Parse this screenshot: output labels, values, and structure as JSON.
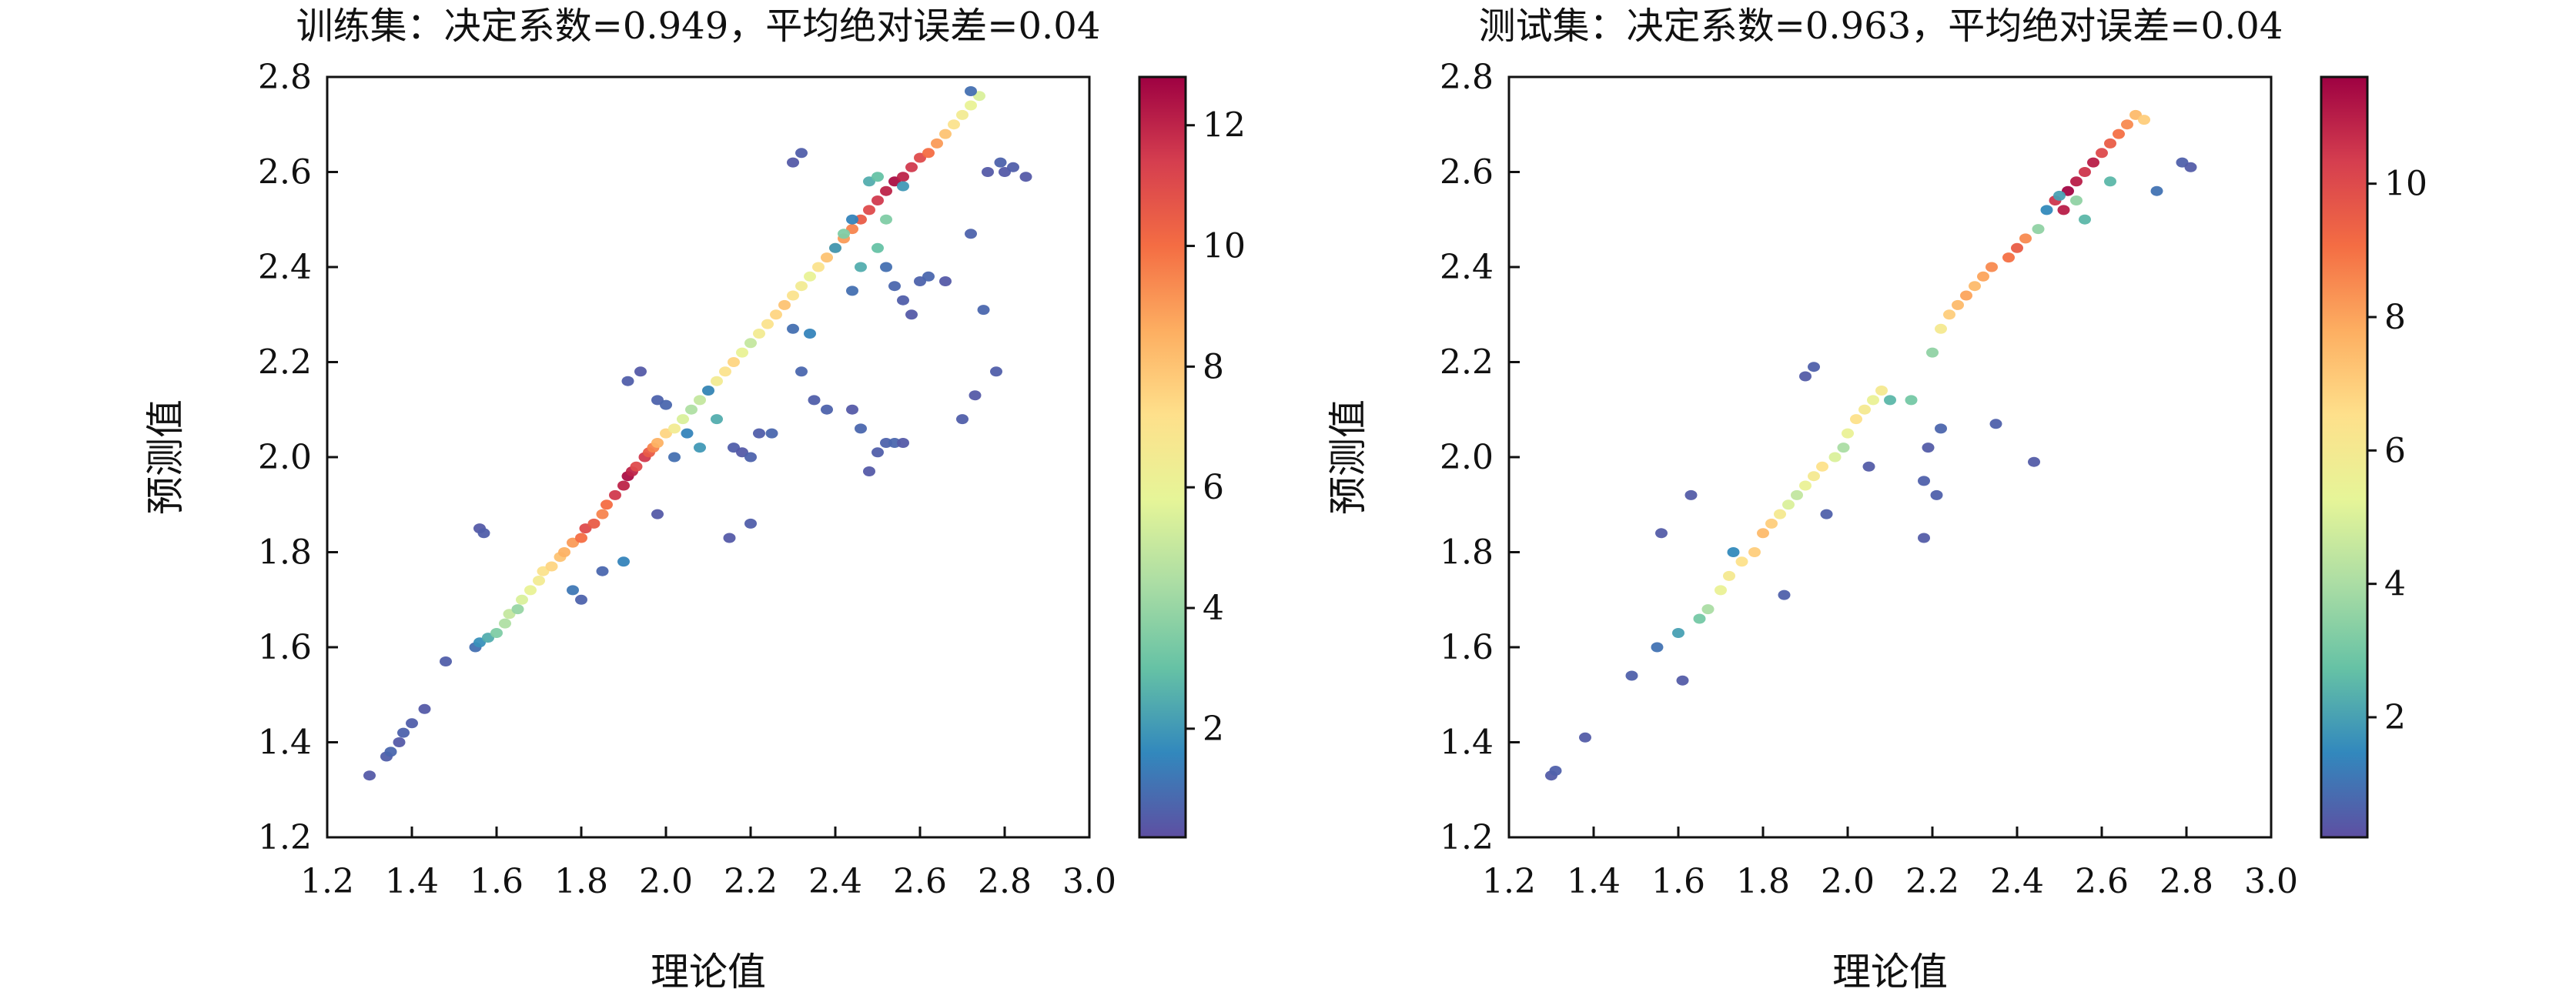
{
  "colormap": {
    "name": "Spectral_r",
    "stops": [
      "#5e4fa2",
      "#3288bd",
      "#66c2a5",
      "#abdda4",
      "#e6f598",
      "#fee08b",
      "#fdae61",
      "#f46d43",
      "#d53e4f",
      "#9e0142"
    ]
  },
  "chart_data": [
    {
      "type": "scatter",
      "title": "训练集：决定系数=0.949，平均绝对误差=0.04",
      "xlabel": "理论值",
      "ylabel": "预测值",
      "xlim": [
        1.2,
        3.0
      ],
      "ylim": [
        1.2,
        2.8
      ],
      "xticks": [
        "1.2",
        "1.4",
        "1.6",
        "1.8",
        "2.0",
        "2.2",
        "2.4",
        "2.6",
        "2.8",
        "3.0"
      ],
      "yticks": [
        "1.2",
        "1.4",
        "1.6",
        "1.8",
        "2.0",
        "2.2",
        "2.4",
        "2.6",
        "2.8"
      ],
      "colorbar": {
        "range": [
          0.2,
          12.8
        ],
        "ticks": [
          "2",
          "4",
          "6",
          "8",
          "10",
          "12"
        ]
      },
      "points": [
        [
          1.3,
          1.33,
          0.5
        ],
        [
          1.34,
          1.37,
          0.6
        ],
        [
          1.35,
          1.38,
          0.8
        ],
        [
          1.37,
          1.4,
          0.5
        ],
        [
          1.38,
          1.42,
          0.7
        ],
        [
          1.4,
          1.44,
          0.6
        ],
        [
          1.43,
          1.47,
          0.5
        ],
        [
          1.48,
          1.57,
          0.6
        ],
        [
          1.55,
          1.6,
          1.0
        ],
        [
          1.56,
          1.61,
          1.8
        ],
        [
          1.58,
          1.62,
          2.5
        ],
        [
          1.6,
          1.63,
          3.5
        ],
        [
          1.62,
          1.65,
          4.5
        ],
        [
          1.63,
          1.67,
          5.0
        ],
        [
          1.65,
          1.68,
          4.0
        ],
        [
          1.66,
          1.7,
          5.5
        ],
        [
          1.68,
          1.72,
          6.0
        ],
        [
          1.7,
          1.74,
          6.5
        ],
        [
          1.71,
          1.76,
          7.0
        ],
        [
          1.73,
          1.77,
          7.5
        ],
        [
          1.75,
          1.79,
          8.0
        ],
        [
          1.76,
          1.8,
          8.5
        ],
        [
          1.78,
          1.82,
          9.0
        ],
        [
          1.8,
          1.83,
          10.0
        ],
        [
          1.81,
          1.85,
          11.0
        ],
        [
          1.83,
          1.86,
          10.5
        ],
        [
          1.85,
          1.88,
          9.5
        ],
        [
          1.86,
          1.9,
          10.0
        ],
        [
          1.88,
          1.92,
          11.5
        ],
        [
          1.9,
          1.94,
          12.0
        ],
        [
          1.91,
          1.96,
          12.5
        ],
        [
          1.92,
          1.97,
          12.0
        ],
        [
          1.93,
          1.98,
          11.0
        ],
        [
          1.95,
          2.0,
          11.5
        ],
        [
          1.96,
          2.01,
          10.5
        ],
        [
          1.97,
          2.02,
          9.5
        ],
        [
          1.98,
          2.03,
          8.5
        ],
        [
          2.0,
          2.05,
          7.5
        ],
        [
          2.02,
          2.06,
          6.5
        ],
        [
          2.04,
          2.08,
          5.5
        ],
        [
          2.06,
          2.1,
          4.5
        ],
        [
          2.08,
          2.12,
          5.0
        ],
        [
          2.1,
          2.14,
          6.0
        ],
        [
          2.12,
          2.16,
          6.5
        ],
        [
          2.14,
          2.18,
          7.0
        ],
        [
          2.16,
          2.2,
          7.5
        ],
        [
          2.18,
          2.22,
          6.0
        ],
        [
          2.2,
          2.24,
          5.0
        ],
        [
          2.22,
          2.26,
          6.5
        ],
        [
          2.24,
          2.28,
          7.0
        ],
        [
          2.26,
          2.3,
          7.5
        ],
        [
          2.28,
          2.32,
          8.0
        ],
        [
          2.3,
          2.34,
          7.0
        ],
        [
          2.32,
          2.36,
          6.5
        ],
        [
          2.34,
          2.38,
          6.0
        ],
        [
          2.36,
          2.4,
          7.0
        ],
        [
          2.38,
          2.42,
          8.0
        ],
        [
          2.4,
          2.44,
          8.5
        ],
        [
          2.42,
          2.46,
          9.0
        ],
        [
          2.44,
          2.48,
          9.5
        ],
        [
          2.46,
          2.5,
          10.5
        ],
        [
          2.48,
          2.52,
          11.0
        ],
        [
          2.5,
          2.54,
          11.5
        ],
        [
          2.52,
          2.56,
          12.0
        ],
        [
          2.54,
          2.58,
          12.5
        ],
        [
          2.56,
          2.59,
          12.0
        ],
        [
          2.58,
          2.61,
          11.5
        ],
        [
          2.6,
          2.63,
          11.0
        ],
        [
          2.62,
          2.64,
          10.0
        ],
        [
          2.64,
          2.66,
          9.0
        ],
        [
          2.66,
          2.68,
          8.0
        ],
        [
          2.68,
          2.7,
          7.0
        ],
        [
          2.7,
          2.72,
          6.5
        ],
        [
          2.72,
          2.74,
          6.0
        ],
        [
          2.74,
          2.76,
          5.5
        ],
        [
          2.72,
          2.77,
          1.0
        ],
        [
          1.56,
          1.85,
          0.5
        ],
        [
          1.57,
          1.84,
          0.6
        ],
        [
          1.8,
          1.7,
          0.7
        ],
        [
          1.78,
          1.72,
          1.2
        ],
        [
          1.85,
          1.76,
          0.8
        ],
        [
          1.9,
          1.78,
          1.5
        ],
        [
          1.94,
          2.18,
          0.5
        ],
        [
          1.91,
          2.16,
          0.6
        ],
        [
          1.98,
          2.12,
          0.7
        ],
        [
          2.0,
          2.11,
          0.8
        ],
        [
          1.98,
          1.88,
          0.5
        ],
        [
          2.02,
          2.0,
          1.0
        ],
        [
          2.05,
          2.05,
          1.5
        ],
        [
          2.08,
          2.02,
          2.0
        ],
        [
          2.1,
          2.14,
          1.5
        ],
        [
          2.12,
          2.08,
          2.5
        ],
        [
          2.16,
          2.02,
          0.6
        ],
        [
          2.18,
          2.01,
          0.5
        ],
        [
          2.2,
          2.0,
          0.7
        ],
        [
          2.22,
          2.05,
          0.6
        ],
        [
          2.25,
          2.05,
          0.8
        ],
        [
          2.15,
          1.83,
          0.5
        ],
        [
          2.2,
          1.86,
          0.6
        ],
        [
          2.3,
          2.27,
          1.0
        ],
        [
          2.32,
          2.18,
          0.8
        ],
        [
          2.34,
          2.26,
          1.5
        ],
        [
          2.35,
          2.12,
          0.6
        ],
        [
          2.3,
          2.62,
          0.5
        ],
        [
          2.32,
          2.64,
          0.6
        ],
        [
          2.38,
          2.1,
          0.7
        ],
        [
          2.44,
          2.1,
          0.5
        ],
        [
          2.46,
          2.06,
          0.8
        ],
        [
          2.48,
          1.97,
          0.5
        ],
        [
          2.5,
          2.01,
          0.6
        ],
        [
          2.52,
          2.03,
          0.7
        ],
        [
          2.54,
          2.03,
          0.8
        ],
        [
          2.56,
          2.03,
          0.5
        ],
        [
          2.44,
          2.35,
          1.0
        ],
        [
          2.46,
          2.4,
          2.5
        ],
        [
          2.5,
          2.44,
          3.0
        ],
        [
          2.52,
          2.4,
          1.0
        ],
        [
          2.54,
          2.36,
          0.8
        ],
        [
          2.56,
          2.33,
          0.6
        ],
        [
          2.58,
          2.3,
          0.5
        ],
        [
          2.6,
          2.37,
          0.7
        ],
        [
          2.62,
          2.38,
          0.8
        ],
        [
          2.66,
          2.37,
          0.5
        ],
        [
          2.7,
          2.08,
          0.6
        ],
        [
          2.73,
          2.13,
          0.5
        ],
        [
          2.75,
          2.31,
          0.8
        ],
        [
          2.76,
          2.6,
          0.5
        ],
        [
          2.78,
          2.18,
          0.6
        ],
        [
          2.79,
          2.62,
          0.7
        ],
        [
          2.8,
          2.6,
          0.5
        ],
        [
          2.82,
          2.61,
          0.6
        ],
        [
          2.85,
          2.59,
          0.5
        ],
        [
          2.72,
          2.47,
          0.7
        ],
        [
          2.48,
          2.58,
          2.5
        ],
        [
          2.5,
          2.59,
          3.0
        ],
        [
          2.52,
          2.5,
          3.5
        ],
        [
          2.44,
          2.5,
          1.5
        ],
        [
          2.4,
          2.44,
          2.0
        ],
        [
          2.42,
          2.47,
          3.5
        ],
        [
          2.56,
          2.57,
          2.0
        ]
      ]
    },
    {
      "type": "scatter",
      "title": "测试集：决定系数=0.963，平均绝对误差=0.04",
      "xlabel": "理论值",
      "ylabel": "预测值",
      "xlim": [
        1.2,
        3.0
      ],
      "ylim": [
        1.2,
        2.8
      ],
      "xticks": [
        "1.2",
        "1.4",
        "1.6",
        "1.8",
        "2.0",
        "2.2",
        "2.4",
        "2.6",
        "2.8",
        "3.0"
      ],
      "yticks": [
        "1.2",
        "1.4",
        "1.6",
        "1.8",
        "2.0",
        "2.2",
        "2.4",
        "2.6",
        "2.8"
      ],
      "colorbar": {
        "range": [
          0.2,
          11.6
        ],
        "ticks": [
          "2",
          "4",
          "6",
          "8",
          "10"
        ]
      },
      "points": [
        [
          1.3,
          1.33,
          0.5
        ],
        [
          1.31,
          1.34,
          0.6
        ],
        [
          1.38,
          1.41,
          0.5
        ],
        [
          1.49,
          1.54,
          0.6
        ],
        [
          1.55,
          1.6,
          1.0
        ],
        [
          1.56,
          1.84,
          0.5
        ],
        [
          1.6,
          1.63,
          2.0
        ],
        [
          1.61,
          1.53,
          0.5
        ],
        [
          1.63,
          1.92,
          0.5
        ],
        [
          1.65,
          1.66,
          3.0
        ],
        [
          1.67,
          1.68,
          4.0
        ],
        [
          1.7,
          1.72,
          5.5
        ],
        [
          1.72,
          1.75,
          6.0
        ],
        [
          1.73,
          1.8,
          1.5
        ],
        [
          1.75,
          1.78,
          6.5
        ],
        [
          1.78,
          1.8,
          7.0
        ],
        [
          1.8,
          1.84,
          7.5
        ],
        [
          1.82,
          1.86,
          7.0
        ],
        [
          1.84,
          1.88,
          6.0
        ],
        [
          1.85,
          1.71,
          0.6
        ],
        [
          1.86,
          1.9,
          5.0
        ],
        [
          1.88,
          1.92,
          4.5
        ],
        [
          1.9,
          1.94,
          5.5
        ],
        [
          1.92,
          1.96,
          6.0
        ],
        [
          1.9,
          2.17,
          0.5
        ],
        [
          1.92,
          2.19,
          0.6
        ],
        [
          1.94,
          1.98,
          6.5
        ],
        [
          1.95,
          1.88,
          0.6
        ],
        [
          1.97,
          2.0,
          5.0
        ],
        [
          1.99,
          2.02,
          4.0
        ],
        [
          2.0,
          2.05,
          5.5
        ],
        [
          2.02,
          2.08,
          6.5
        ],
        [
          2.04,
          2.1,
          6.0
        ],
        [
          2.06,
          2.12,
          5.5
        ],
        [
          2.08,
          2.14,
          6.0
        ],
        [
          2.05,
          1.98,
          0.5
        ],
        [
          2.1,
          2.12,
          2.5
        ],
        [
          2.15,
          2.12,
          3.0
        ],
        [
          2.18,
          1.83,
          0.5
        ],
        [
          2.18,
          1.95,
          0.6
        ],
        [
          2.19,
          2.02,
          0.5
        ],
        [
          2.21,
          1.92,
          0.6
        ],
        [
          2.22,
          2.06,
          0.7
        ],
        [
          2.2,
          2.22,
          3.5
        ],
        [
          2.22,
          2.27,
          6.0
        ],
        [
          2.24,
          2.3,
          7.0
        ],
        [
          2.26,
          2.32,
          7.5
        ],
        [
          2.28,
          2.34,
          8.0
        ],
        [
          2.3,
          2.36,
          7.5
        ],
        [
          2.32,
          2.38,
          8.0
        ],
        [
          2.34,
          2.4,
          8.5
        ],
        [
          2.35,
          2.07,
          0.6
        ],
        [
          2.38,
          2.42,
          9.0
        ],
        [
          2.4,
          2.44,
          9.5
        ],
        [
          2.42,
          2.46,
          8.5
        ],
        [
          2.44,
          1.99,
          0.5
        ],
        [
          2.45,
          2.48,
          3.5
        ],
        [
          2.47,
          2.52,
          1.5
        ],
        [
          2.49,
          2.54,
          10.5
        ],
        [
          2.51,
          2.52,
          11.0
        ],
        [
          2.52,
          2.56,
          11.5
        ],
        [
          2.54,
          2.58,
          11.0
        ],
        [
          2.56,
          2.6,
          10.5
        ],
        [
          2.58,
          2.62,
          11.0
        ],
        [
          2.6,
          2.64,
          10.0
        ],
        [
          2.62,
          2.66,
          9.5
        ],
        [
          2.64,
          2.68,
          9.0
        ],
        [
          2.66,
          2.7,
          8.5
        ],
        [
          2.68,
          2.72,
          7.5
        ],
        [
          2.7,
          2.71,
          7.0
        ],
        [
          2.73,
          2.56,
          1.0
        ],
        [
          2.79,
          2.62,
          0.6
        ],
        [
          2.81,
          2.61,
          0.5
        ],
        [
          2.56,
          2.5,
          2.5
        ],
        [
          2.54,
          2.54,
          3.5
        ],
        [
          2.62,
          2.58,
          2.5
        ],
        [
          2.5,
          2.55,
          2.0
        ]
      ]
    }
  ]
}
